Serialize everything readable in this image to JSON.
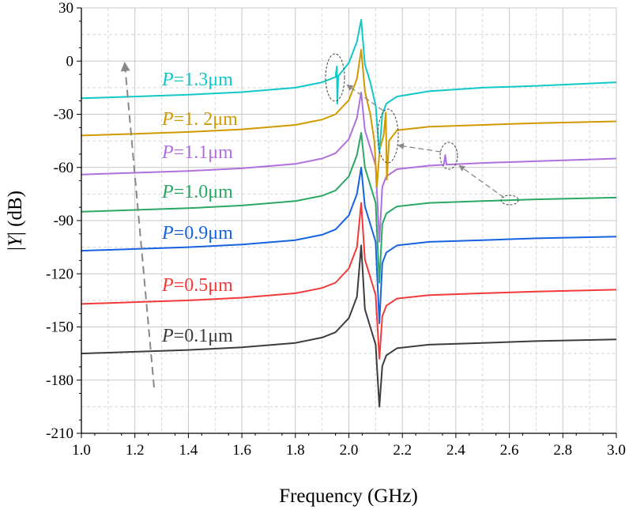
{
  "chart_data": {
    "type": "line",
    "xlabel": "Frequency (GHz)",
    "ylabel_parts": [
      "|",
      "Y",
      "| (dB)"
    ],
    "xlim": [
      1.0,
      3.0
    ],
    "ylim": [
      -210,
      30
    ],
    "xticks": [
      "1.0",
      "1.2",
      "1.4",
      "1.6",
      "1.8",
      "2.0",
      "2.2",
      "2.4",
      "2.6",
      "2.8",
      "3.0"
    ],
    "yticks": [
      "30",
      "0",
      "-30",
      "-60",
      "-90",
      "-120",
      "-150",
      "-180",
      "-210"
    ],
    "grid": true,
    "series": [
      {
        "name": "P=0.1μm",
        "label_var": "P",
        "label_rest": "=0.1μm",
        "color": "#3d3d3d",
        "points": [
          [
            1.0,
            -165
          ],
          [
            1.2,
            -164
          ],
          [
            1.4,
            -163
          ],
          [
            1.6,
            -161.5
          ],
          [
            1.8,
            -159
          ],
          [
            1.9,
            -156
          ],
          [
            1.95,
            -153
          ],
          [
            2.0,
            -145
          ],
          [
            2.03,
            -133
          ],
          [
            2.046,
            -104
          ],
          [
            2.06,
            -140
          ],
          [
            2.08,
            -150
          ],
          [
            2.1,
            -160
          ],
          [
            2.114,
            -195
          ],
          [
            2.125,
            -172
          ],
          [
            2.14,
            -166
          ],
          [
            2.18,
            -162
          ],
          [
            2.3,
            -160
          ],
          [
            2.5,
            -159
          ],
          [
            2.7,
            -158
          ],
          [
            3.0,
            -157
          ]
        ]
      },
      {
        "name": "P=0.5μm",
        "label_var": "P",
        "label_rest": "=0.5μm",
        "color": "#f23a3a",
        "points": [
          [
            1.0,
            -137
          ],
          [
            1.2,
            -136
          ],
          [
            1.4,
            -135
          ],
          [
            1.6,
            -133.5
          ],
          [
            1.8,
            -131
          ],
          [
            1.9,
            -128
          ],
          [
            1.95,
            -125
          ],
          [
            2.0,
            -117
          ],
          [
            2.03,
            -105
          ],
          [
            2.046,
            -80
          ],
          [
            2.06,
            -112
          ],
          [
            2.08,
            -122
          ],
          [
            2.1,
            -132
          ],
          [
            2.114,
            -168
          ],
          [
            2.125,
            -144
          ],
          [
            2.14,
            -138
          ],
          [
            2.18,
            -134
          ],
          [
            2.3,
            -132
          ],
          [
            2.5,
            -131
          ],
          [
            2.7,
            -130
          ],
          [
            3.0,
            -129
          ]
        ]
      },
      {
        "name": "P=0.9μm",
        "label_var": "P",
        "label_rest": "=0.9μm",
        "color": "#1662e0",
        "points": [
          [
            1.0,
            -107
          ],
          [
            1.2,
            -106
          ],
          [
            1.4,
            -105
          ],
          [
            1.6,
            -103.5
          ],
          [
            1.8,
            -101
          ],
          [
            1.9,
            -98
          ],
          [
            1.95,
            -95
          ],
          [
            2.0,
            -87
          ],
          [
            2.03,
            -75
          ],
          [
            2.046,
            -60
          ],
          [
            2.06,
            -82
          ],
          [
            2.08,
            -92
          ],
          [
            2.1,
            -102
          ],
          [
            2.114,
            -148
          ],
          [
            2.125,
            -114
          ],
          [
            2.14,
            -108
          ],
          [
            2.18,
            -104
          ],
          [
            2.3,
            -102
          ],
          [
            2.5,
            -101
          ],
          [
            2.7,
            -100
          ],
          [
            3.0,
            -99
          ]
        ]
      },
      {
        "name": "P=1.0μm",
        "label_var": "P",
        "label_rest": "=1.0μm",
        "color": "#2aa864",
        "points": [
          [
            1.0,
            -85
          ],
          [
            1.2,
            -84
          ],
          [
            1.4,
            -83
          ],
          [
            1.6,
            -81.5
          ],
          [
            1.8,
            -79
          ],
          [
            1.9,
            -76
          ],
          [
            1.95,
            -73
          ],
          [
            2.0,
            -65
          ],
          [
            2.03,
            -53
          ],
          [
            2.046,
            -40.5
          ],
          [
            2.06,
            -60
          ],
          [
            2.08,
            -70
          ],
          [
            2.1,
            -80
          ],
          [
            2.114,
            -125
          ],
          [
            2.125,
            -92
          ],
          [
            2.14,
            -86
          ],
          [
            2.18,
            -82
          ],
          [
            2.3,
            -80
          ],
          [
            2.5,
            -79
          ],
          [
            2.7,
            -78
          ],
          [
            3.0,
            -77
          ]
        ]
      },
      {
        "name": "P=1.1μm",
        "label_var": "P",
        "label_rest": "=1.1μm",
        "color": "#b070e0",
        "points": [
          [
            1.0,
            -64
          ],
          [
            1.2,
            -63
          ],
          [
            1.4,
            -62
          ],
          [
            1.6,
            -60.5
          ],
          [
            1.8,
            -58
          ],
          [
            1.9,
            -55
          ],
          [
            1.95,
            -52
          ],
          [
            2.0,
            -44
          ],
          [
            2.03,
            -32
          ],
          [
            2.046,
            -17.7
          ],
          [
            2.06,
            -39
          ],
          [
            2.08,
            -49
          ],
          [
            2.1,
            -59
          ],
          [
            2.114,
            -102
          ],
          [
            2.125,
            -71
          ],
          [
            2.14,
            -65
          ],
          [
            2.18,
            -61
          ],
          [
            2.3,
            -59
          ],
          [
            2.355,
            -58.5
          ],
          [
            2.36,
            -53
          ],
          [
            2.365,
            -58.4
          ],
          [
            2.5,
            -57.5
          ],
          [
            2.7,
            -56.5
          ],
          [
            3.0,
            -55
          ]
        ]
      },
      {
        "name": "P=1. 2μm",
        "label_var": "P",
        "label_rest": "=1. 2μm",
        "color": "#d09a00",
        "points": [
          [
            1.0,
            -42
          ],
          [
            1.2,
            -41
          ],
          [
            1.4,
            -40
          ],
          [
            1.6,
            -38.5
          ],
          [
            1.8,
            -36
          ],
          [
            1.9,
            -33
          ],
          [
            1.95,
            -30
          ],
          [
            2.0,
            -22
          ],
          [
            2.03,
            -10
          ],
          [
            2.046,
            6.4
          ],
          [
            2.06,
            -17
          ],
          [
            2.08,
            -30
          ],
          [
            2.095,
            -45
          ],
          [
            2.105,
            -71
          ],
          [
            2.115,
            -50
          ],
          [
            2.13,
            -42
          ],
          [
            2.138,
            -29
          ],
          [
            2.142,
            -67
          ],
          [
            2.15,
            -45
          ],
          [
            2.18,
            -39
          ],
          [
            2.3,
            -37
          ],
          [
            2.5,
            -36
          ],
          [
            2.7,
            -35
          ],
          [
            3.0,
            -34
          ]
        ]
      },
      {
        "name": "P=1.3μm",
        "label_var": "P",
        "label_rest": "=1.3μm",
        "color": "#12c8c8",
        "points": [
          [
            1.0,
            -21
          ],
          [
            1.2,
            -20
          ],
          [
            1.4,
            -19
          ],
          [
            1.6,
            -17.5
          ],
          [
            1.8,
            -15
          ],
          [
            1.9,
            -12
          ],
          [
            1.95,
            -9
          ],
          [
            1.955,
            -3
          ],
          [
            1.957,
            -24
          ],
          [
            1.96,
            -8.5
          ],
          [
            2.0,
            -1
          ],
          [
            2.03,
            11
          ],
          [
            2.046,
            23.3
          ],
          [
            2.06,
            -2
          ],
          [
            2.08,
            -12
          ],
          [
            2.1,
            -25
          ],
          [
            2.114,
            -52
          ],
          [
            2.125,
            -30
          ],
          [
            2.14,
            -24
          ],
          [
            2.18,
            -20
          ],
          [
            2.3,
            -17
          ],
          [
            2.5,
            -15
          ],
          [
            2.7,
            -14
          ],
          [
            3.0,
            -12
          ]
        ]
      }
    ],
    "annotations": [
      "dashed ellipses marking spurious modes",
      "dashed arrow indicating increasing P"
    ]
  }
}
